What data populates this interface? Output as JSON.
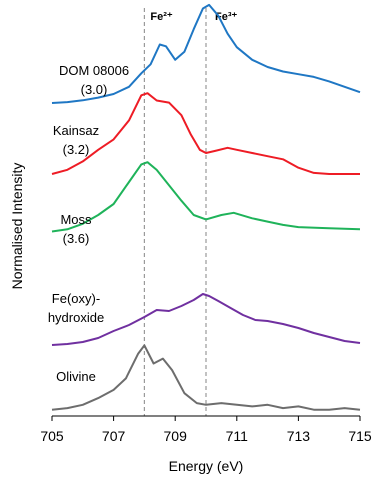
{
  "chart_data": {
    "type": "line",
    "title": "",
    "xlabel": "Energy (eV)",
    "ylabel": "Normalised Intensity",
    "xlim": [
      705,
      715
    ],
    "x_ticks": [
      "705",
      "707",
      "709",
      "711",
      "713",
      "715"
    ],
    "y_ticks_shown": false,
    "grid": false,
    "legend": "none (labels placed beside each spectrum)",
    "reference_lines": [
      {
        "label": "Fe²⁺",
        "x": 708.0,
        "style": "dashed",
        "color": "#9a9a9a"
      },
      {
        "label": "Fe³⁺",
        "x": 710.0,
        "style": "dashed",
        "color": "#9a9a9a"
      }
    ],
    "series": [
      {
        "name": "DOM 08006 (3.0)",
        "label_lines": [
          "DOM 08006",
          "(3.0)"
        ],
        "color": "#1f77c4",
        "points": [
          [
            705.0,
            0.5
          ],
          [
            705.5,
            0.51
          ],
          [
            706.0,
            0.53
          ],
          [
            706.5,
            0.56
          ],
          [
            707.0,
            0.6
          ],
          [
            707.5,
            0.68
          ],
          [
            707.9,
            0.83
          ],
          [
            708.2,
            0.93
          ],
          [
            708.5,
            1.15
          ],
          [
            708.7,
            1.13
          ],
          [
            709.0,
            0.98
          ],
          [
            709.3,
            1.07
          ],
          [
            709.6,
            1.32
          ],
          [
            709.9,
            1.55
          ],
          [
            710.1,
            1.59
          ],
          [
            710.4,
            1.47
          ],
          [
            710.7,
            1.27
          ],
          [
            711.0,
            1.12
          ],
          [
            711.5,
            0.98
          ],
          [
            712.0,
            0.9
          ],
          [
            712.5,
            0.85
          ],
          [
            713.0,
            0.82
          ],
          [
            713.5,
            0.79
          ],
          [
            714.0,
            0.74
          ],
          [
            714.5,
            0.68
          ],
          [
            715.0,
            0.62
          ]
        ]
      },
      {
        "name": "Kainsaz (3.2)",
        "label_lines": [
          "Kainsaz",
          "(3.2)"
        ],
        "color": "#ee1c25",
        "points": [
          [
            705.0,
            0.8
          ],
          [
            705.5,
            0.84
          ],
          [
            706.0,
            0.92
          ],
          [
            706.5,
            1.03
          ],
          [
            707.0,
            1.13
          ],
          [
            707.5,
            1.31
          ],
          [
            707.9,
            1.55
          ],
          [
            708.1,
            1.57
          ],
          [
            708.4,
            1.5
          ],
          [
            708.8,
            1.48
          ],
          [
            709.2,
            1.36
          ],
          [
            709.5,
            1.18
          ],
          [
            709.8,
            1.03
          ],
          [
            710.0,
            1.0
          ],
          [
            710.3,
            1.02
          ],
          [
            710.7,
            1.05
          ],
          [
            711.0,
            1.03
          ],
          [
            711.5,
            1.0
          ],
          [
            712.0,
            0.97
          ],
          [
            712.5,
            0.94
          ],
          [
            713.0,
            0.86
          ],
          [
            713.5,
            0.81
          ],
          [
            714.0,
            0.8
          ],
          [
            715.0,
            0.8
          ]
        ]
      },
      {
        "name": "Moss (3.6)",
        "label_lines": [
          "Moss",
          "(3.6)"
        ],
        "color": "#1fb35a",
        "points": [
          [
            705.0,
            0.55
          ],
          [
            705.5,
            0.57
          ],
          [
            706.0,
            0.62
          ],
          [
            706.5,
            0.7
          ],
          [
            707.0,
            0.8
          ],
          [
            707.5,
            1.0
          ],
          [
            707.9,
            1.16
          ],
          [
            708.1,
            1.18
          ],
          [
            708.4,
            1.11
          ],
          [
            708.8,
            0.97
          ],
          [
            709.2,
            0.83
          ],
          [
            709.6,
            0.7
          ],
          [
            710.0,
            0.66
          ],
          [
            710.5,
            0.7
          ],
          [
            710.9,
            0.72
          ],
          [
            711.5,
            0.67
          ],
          [
            712.0,
            0.64
          ],
          [
            712.5,
            0.61
          ],
          [
            713.0,
            0.59
          ],
          [
            714.0,
            0.58
          ],
          [
            715.0,
            0.57
          ]
        ]
      },
      {
        "name": "Fe(oxy)-hydroxide",
        "label_lines": [
          "Fe(oxy)-",
          "hydroxide"
        ],
        "color": "#7030a0",
        "points": [
          [
            705.0,
            0.48
          ],
          [
            705.5,
            0.49
          ],
          [
            706.0,
            0.51
          ],
          [
            706.5,
            0.55
          ],
          [
            707.0,
            0.62
          ],
          [
            707.5,
            0.68
          ],
          [
            708.0,
            0.76
          ],
          [
            708.4,
            0.83
          ],
          [
            708.8,
            0.82
          ],
          [
            709.2,
            0.87
          ],
          [
            709.6,
            0.93
          ],
          [
            709.9,
            0.99
          ],
          [
            710.1,
            0.97
          ],
          [
            710.4,
            0.92
          ],
          [
            710.8,
            0.85
          ],
          [
            711.2,
            0.78
          ],
          [
            711.6,
            0.73
          ],
          [
            712.0,
            0.72
          ],
          [
            712.5,
            0.69
          ],
          [
            713.0,
            0.65
          ],
          [
            713.5,
            0.6
          ],
          [
            714.0,
            0.56
          ],
          [
            714.5,
            0.52
          ],
          [
            715.0,
            0.5
          ]
        ]
      },
      {
        "name": "Olivine",
        "label_lines": [
          "Olivine"
        ],
        "color": "#6d6d6d",
        "points": [
          [
            705.0,
            0.02
          ],
          [
            705.5,
            0.03
          ],
          [
            706.0,
            0.05
          ],
          [
            706.5,
            0.09
          ],
          [
            707.0,
            0.14
          ],
          [
            707.4,
            0.21
          ],
          [
            707.8,
            0.36
          ],
          [
            708.0,
            0.41
          ],
          [
            708.3,
            0.3
          ],
          [
            708.6,
            0.33
          ],
          [
            708.9,
            0.26
          ],
          [
            709.3,
            0.12
          ],
          [
            709.7,
            0.06
          ],
          [
            710.0,
            0.05
          ],
          [
            710.5,
            0.06
          ],
          [
            711.0,
            0.05
          ],
          [
            711.5,
            0.04
          ],
          [
            712.0,
            0.05
          ],
          [
            712.5,
            0.03
          ],
          [
            713.0,
            0.04
          ],
          [
            713.5,
            0.02
          ],
          [
            714.0,
            0.02
          ],
          [
            714.5,
            0.03
          ],
          [
            715.0,
            0.02
          ]
        ]
      }
    ]
  }
}
